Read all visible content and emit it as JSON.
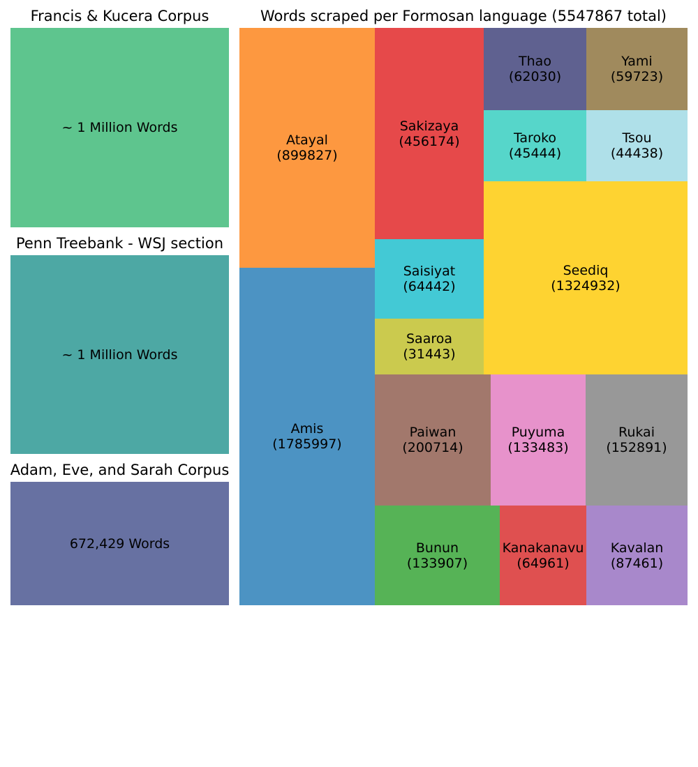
{
  "chart_data": [
    {
      "type": "treemap",
      "title": "Francis & Kucera Corpus",
      "items": [
        {
          "label": "~ 1 Million Words",
          "color": "#5ec58e"
        }
      ]
    },
    {
      "type": "treemap",
      "title": "Penn Treebank - WSJ section",
      "items": [
        {
          "label": "~ 1 Million Words",
          "color": "#4da8a4"
        }
      ]
    },
    {
      "type": "treemap",
      "title": "Adam, Eve, and Sarah Corpus",
      "items": [
        {
          "label": "672,429 Words",
          "color": "#6771a2"
        }
      ]
    },
    {
      "type": "treemap",
      "title": "Words scraped per Formosan language (5547867 total)",
      "items": [
        {
          "name": "Amis",
          "value": 1785997,
          "color": "#4c93c3"
        },
        {
          "name": "Atayal",
          "value": 899827,
          "color": "#fd9840"
        },
        {
          "name": "Sakizaya",
          "value": 456174,
          "color": "#e6494a"
        },
        {
          "name": "Saisiyat",
          "value": 64442,
          "color": "#43c9d5"
        },
        {
          "name": "Saaroa",
          "value": 31443,
          "color": "#cbca4e"
        },
        {
          "name": "Thao",
          "value": 62030,
          "color": "#5f6190"
        },
        {
          "name": "Yami",
          "value": 59723,
          "color": "#a08a5d"
        },
        {
          "name": "Taroko",
          "value": 45444,
          "color": "#56d6ca"
        },
        {
          "name": "Tsou",
          "value": 44438,
          "color": "#afe0e9"
        },
        {
          "name": "Seediq",
          "value": 1324932,
          "color": "#fed331"
        },
        {
          "name": "Paiwan",
          "value": 200714,
          "color": "#a2786c"
        },
        {
          "name": "Puyuma",
          "value": 133483,
          "color": "#e792cb"
        },
        {
          "name": "Rukai",
          "value": 152891,
          "color": "#989898"
        },
        {
          "name": "Bunun",
          "value": 133907,
          "color": "#56b356"
        },
        {
          "name": "Kanakanavu",
          "value": 64961,
          "color": "#df5050"
        },
        {
          "name": "Kavalan",
          "value": 87461,
          "color": "#a888cb"
        }
      ]
    }
  ]
}
